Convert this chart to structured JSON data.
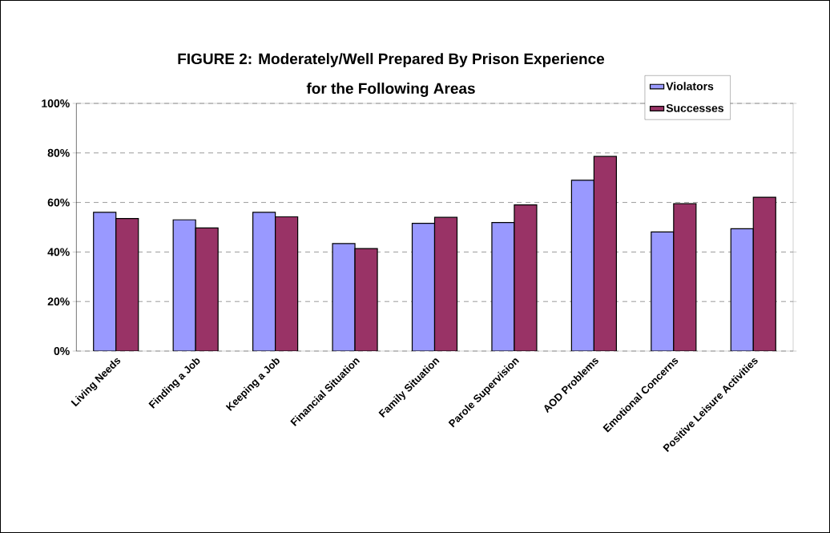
{
  "chart_data": {
    "type": "bar",
    "title": "FIGURE 2:  Moderately/Well Prepared By Prison Experience",
    "subtitle": "for the Following Areas",
    "categories": [
      "Living Needs",
      "Finding a Job",
      "Keeping a Job",
      "Financial Situation",
      "Family Situation",
      "Parole Supervision",
      "AOD Problems",
      "Emotional Concerns",
      "Positive Leisure Activities"
    ],
    "series": [
      {
        "name": "Violators",
        "color": "#9999ff",
        "values": [
          56,
          53,
          56,
          43.4,
          51.6,
          51.9,
          69,
          48.1,
          49.4
        ]
      },
      {
        "name": "Successes",
        "color": "#993366",
        "values": [
          53.5,
          49.7,
          54.2,
          41.4,
          54,
          59,
          78.6,
          59.5,
          62.1
        ]
      }
    ],
    "ylim": [
      0,
      100
    ],
    "yticks": [
      {
        "value": 0,
        "label": "0%"
      },
      {
        "value": 20,
        "label": "20%"
      },
      {
        "value": 40,
        "label": "40%"
      },
      {
        "value": 60,
        "label": "60%"
      },
      {
        "value": 80,
        "label": "80%"
      },
      {
        "value": 100,
        "label": "100%"
      }
    ],
    "grid": "y",
    "legend": "top right"
  }
}
